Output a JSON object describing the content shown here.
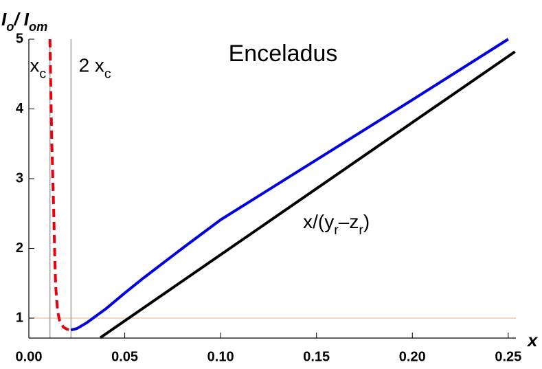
{
  "chart_data": {
    "type": "line",
    "title": "Enceladus",
    "ylabel_parts": [
      "I",
      "o",
      "/ I",
      "om"
    ],
    "xlabel": "x",
    "annotations": [
      {
        "parts": [
          "x",
          "c"
        ],
        "x": 0.0005,
        "y": 4.6
      },
      {
        "parts": [
          "2 x",
          "c"
        ],
        "x": 0.026,
        "y": 4.6
      },
      {
        "parts": [
          "x/(y",
          "r",
          "–z",
          "r",
          ")"
        ],
        "x": 0.143,
        "y": 2.36
      }
    ],
    "xlim": [
      0,
      0.254
    ],
    "ylim": [
      0.714,
      5
    ],
    "xticks": [
      {
        "value": 0,
        "label": "0.00"
      },
      0.05,
      {
        "value": 0.1,
        "label": "0.10"
      },
      0.15,
      {
        "value": 0.2,
        "label": "0.20"
      },
      0.25
    ],
    "yticks": [
      1,
      2,
      3,
      4,
      5
    ],
    "vlines": [
      0.011,
      0.022
    ],
    "vline_color": "#a0a0a0",
    "hlines": [
      1
    ],
    "hline_color": "#f5c9a0",
    "series": [
      {
        "color": "#0000e0",
        "dash": false,
        "x": [
          0.022,
          0.025,
          0.03,
          0.035,
          0.04,
          0.05,
          0.06,
          0.08,
          0.1,
          0.15,
          0.2,
          0.25
        ],
        "values": [
          0.83,
          0.85,
          0.93,
          1.03,
          1.13,
          1.36,
          1.58,
          2.0,
          2.41,
          3.27,
          4.13,
          5.0
        ]
      },
      {
        "color": "#e8000b",
        "dash": true,
        "x": [
          0.011,
          0.0115,
          0.012,
          0.0125,
          0.013,
          0.0135,
          0.014,
          0.015,
          0.016,
          0.018,
          0.02,
          0.022
        ],
        "values": [
          5.0,
          4.2,
          3.5,
          3.0,
          2.5,
          1.9,
          1.45,
          1.1,
          0.97,
          0.87,
          0.84,
          0.83
        ]
      },
      {
        "color": "#000000",
        "dash": false,
        "x": [
          0.0373,
          0.2535
        ],
        "values": [
          0.72,
          4.82
        ]
      }
    ]
  }
}
